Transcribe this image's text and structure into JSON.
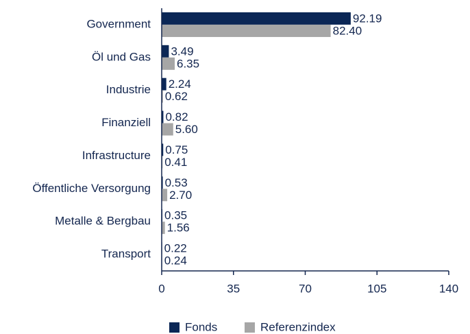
{
  "chart_data": {
    "type": "bar",
    "orientation": "horizontal",
    "categories": [
      "Government",
      "Öl und Gas",
      "Industrie",
      "Finanziell",
      "Infrastructure",
      "Öffentliche Versorgung",
      "Metalle & Bergbau",
      "Transport"
    ],
    "series": [
      {
        "name": "Fonds",
        "color": "#0b2756",
        "values": [
          92.19,
          3.49,
          2.24,
          0.82,
          0.75,
          0.53,
          0.35,
          0.22
        ],
        "value_labels": [
          "92.19",
          "3.49",
          "2.24",
          "0.82",
          "0.75",
          "0.53",
          "0.35",
          "0.22"
        ]
      },
      {
        "name": "Referenzindex",
        "color": "#a6a6a6",
        "values": [
          82.4,
          6.35,
          0.62,
          5.6,
          0.41,
          2.7,
          1.56,
          0.24
        ],
        "value_labels": [
          "82.40",
          "6.35",
          "0.62",
          "5.60",
          "0.41",
          "2.70",
          "1.56",
          "0.24"
        ]
      }
    ],
    "xlim": [
      0,
      140
    ],
    "xticks": [
      0,
      35,
      70,
      105,
      140
    ],
    "legend": "bottom"
  }
}
